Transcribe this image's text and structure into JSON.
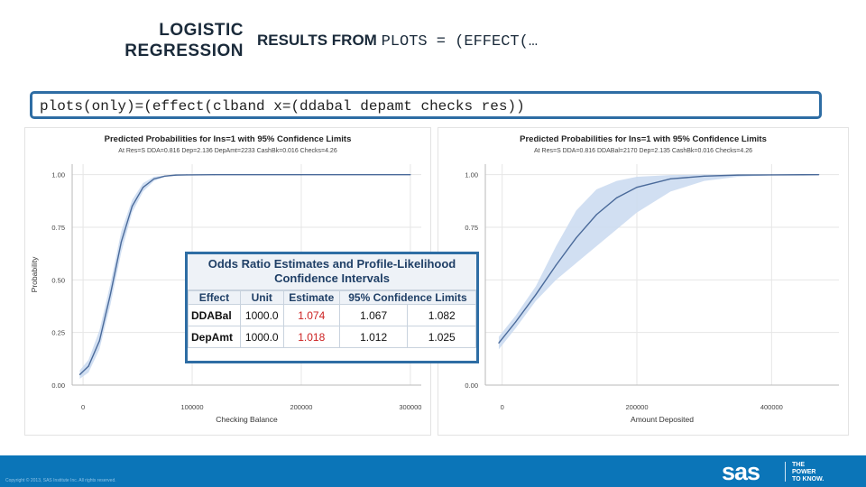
{
  "slide": {
    "title_left": "LOGISTIC REGRESSION",
    "title_right_prefix": "RESULTS FROM",
    "title_right_code": "PLOTS = (EFFECT(…",
    "code_line": "plots(only)=(effect(clband x=(ddabal depamt checks res))"
  },
  "odds_table": {
    "caption": "Odds Ratio Estimates and Profile-Likelihood Confidence Intervals",
    "headers": {
      "effect": "Effect",
      "unit": "Unit",
      "estimate": "Estimate",
      "limits": "95% Confidence Limits"
    },
    "rows": [
      {
        "effect": "DDABal",
        "unit": "1000.0",
        "estimate": "1.074",
        "lower": "1.067",
        "upper": "1.082"
      },
      {
        "effect": "DepAmt",
        "unit": "1000.0",
        "estimate": "1.018",
        "lower": "1.012",
        "upper": "1.025"
      }
    ]
  },
  "footer": {
    "copyright": "Copyright © 2013, SAS Institute Inc. All rights reserved.",
    "logo_text": "sas",
    "tagline": [
      "THE",
      "POWER",
      "TO KNOW."
    ]
  },
  "chart_data": [
    {
      "type": "line",
      "title": "Predicted Probabilities for Ins=1 with 95% Confidence Limits",
      "subtitle": "At Res=S DDA=0.816 Dep=2.136 DepAmt=2233 CashBk=0.016 Checks=4.26",
      "xlabel": "Checking Balance",
      "ylabel": "Probability",
      "xlim": [
        -10000,
        310000
      ],
      "ylim": [
        0,
        1.05
      ],
      "xticks": [
        0,
        100000,
        200000,
        300000
      ],
      "xtick_labels": [
        "0",
        "100000",
        "200000",
        "300000"
      ],
      "yticks": [
        0,
        0.25,
        0.5,
        0.75,
        1.0
      ],
      "ytick_labels": [
        "0.00",
        "0.25",
        "0.50",
        "0.75",
        "1.00"
      ],
      "grid": true,
      "series": [
        {
          "x": [
            -3000,
            5000,
            15000,
            25000,
            35000,
            45000,
            55000,
            65000,
            75000,
            85000,
            95000,
            120000,
            200000,
            300000
          ],
          "y": [
            0.05,
            0.09,
            0.21,
            0.43,
            0.68,
            0.85,
            0.94,
            0.98,
            0.993,
            0.998,
            0.999,
            1.0,
            1.0,
            1.0
          ],
          "lower": [
            0.03,
            0.06,
            0.17,
            0.38,
            0.63,
            0.82,
            0.92,
            0.97,
            0.99,
            0.996,
            0.998,
            1.0,
            1.0,
            1.0
          ],
          "upper": [
            0.07,
            0.12,
            0.26,
            0.48,
            0.73,
            0.88,
            0.96,
            0.99,
            0.996,
            0.999,
            1.0,
            1.0,
            1.0,
            1.0
          ]
        }
      ]
    },
    {
      "type": "line",
      "title": "Predicted Probabilities for Ins=1 with 95% Confidence Limits",
      "subtitle": "At Res=S DDA=0.816 DDABal=2170 Dep=2.135 CashBk=0.016 Checks=4.26",
      "xlabel": "Amount Deposited",
      "ylabel": "",
      "xlim": [
        -25000,
        500000
      ],
      "ylim": [
        0,
        1.05
      ],
      "xticks": [
        0,
        200000,
        400000
      ],
      "xtick_labels": [
        "0",
        "200000",
        "400000"
      ],
      "yticks": [
        0,
        0.25,
        0.5,
        0.75,
        1.0
      ],
      "ytick_labels": [
        "0.00",
        "0.25",
        "0.50",
        "0.75",
        "1.00"
      ],
      "grid": true,
      "series": [
        {
          "x": [
            -5000,
            20000,
            50000,
            80000,
            110000,
            140000,
            170000,
            200000,
            250000,
            300000,
            350000,
            400000,
            470000
          ],
          "y": [
            0.2,
            0.3,
            0.43,
            0.57,
            0.7,
            0.81,
            0.89,
            0.94,
            0.98,
            0.993,
            0.998,
            0.999,
            1.0
          ],
          "lower": [
            0.17,
            0.27,
            0.4,
            0.5,
            0.58,
            0.66,
            0.74,
            0.82,
            0.92,
            0.97,
            0.99,
            0.997,
            1.0
          ],
          "upper": [
            0.23,
            0.33,
            0.47,
            0.66,
            0.83,
            0.93,
            0.97,
            0.99,
            0.998,
            1.0,
            1.0,
            1.0,
            1.0
          ]
        }
      ]
    }
  ]
}
